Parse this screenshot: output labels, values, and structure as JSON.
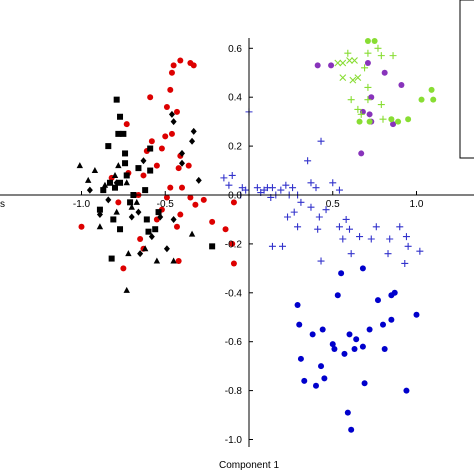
{
  "chart_data": {
    "type": "scatter",
    "xlabel": "Component 1",
    "ylabel": "",
    "xlim": [
      -1.43,
      1.38
    ],
    "ylim": [
      -1.04,
      0.72
    ],
    "x_ticks": [
      {
        "value": -1.0,
        "label": "-1.0"
      },
      {
        "value": -0.5,
        "label": "-0.5"
      },
      {
        "value": 0.5,
        "label": "0.5"
      },
      {
        "value": 1.0,
        "label": "1.0"
      }
    ],
    "y_ticks": [
      {
        "value": 0.6,
        "label": "0.6"
      },
      {
        "value": 0.4,
        "label": "0.4"
      },
      {
        "value": 0.2,
        "label": "0.2"
      },
      {
        "value": 0.0,
        "label": "0.0"
      },
      {
        "value": -0.2,
        "label": "-0.2"
      },
      {
        "value": -0.4,
        "label": "-0.4"
      },
      {
        "value": -0.6,
        "label": "-0.6"
      },
      {
        "value": -0.8,
        "label": "-0.8"
      },
      {
        "value": -1.0,
        "label": "-1.0"
      }
    ],
    "left_edge_label": "s",
    "legend": {
      "placement": "top-right",
      "entries": []
    },
    "grid": false,
    "series": [
      {
        "marker": "circle",
        "color": "#dd0000",
        "points": [
          [
            -0.45,
            0.53
          ],
          [
            -0.41,
            0.55
          ],
          [
            -0.46,
            0.5
          ],
          [
            -0.47,
            0.43
          ],
          [
            -0.35,
            0.54
          ],
          [
            -0.33,
            0.53
          ],
          [
            -0.49,
            0.36
          ],
          [
            -0.43,
            0.34
          ],
          [
            -0.59,
            0.4
          ],
          [
            -0.73,
            0.29
          ],
          [
            -0.46,
            0.25
          ],
          [
            -0.58,
            0.22
          ],
          [
            -0.61,
            0.18
          ],
          [
            -0.5,
            0.24
          ],
          [
            -0.52,
            0.19
          ],
          [
            -0.41,
            0.16
          ],
          [
            -0.72,
            0.09
          ],
          [
            -0.55,
            0.12
          ],
          [
            -0.42,
            0.11
          ],
          [
            -0.36,
            0.12
          ],
          [
            -0.82,
            0.07
          ],
          [
            -0.63,
            0.08
          ],
          [
            -0.47,
            0.03
          ],
          [
            -0.4,
            0.03
          ],
          [
            -0.66,
            0.0
          ],
          [
            -0.49,
            -0.01
          ],
          [
            -0.35,
            -0.01
          ],
          [
            -0.78,
            -0.03
          ],
          [
            -0.27,
            -0.02
          ],
          [
            -0.32,
            -0.04
          ],
          [
            -0.52,
            -0.06
          ],
          [
            -0.41,
            -0.08
          ],
          [
            -0.55,
            -0.1
          ],
          [
            -0.43,
            -0.13
          ],
          [
            -0.65,
            -0.18
          ],
          [
            -0.63,
            -0.22
          ],
          [
            -0.42,
            -0.27
          ],
          [
            -0.75,
            -0.3
          ],
          [
            -1.0,
            -0.13
          ],
          [
            -0.09,
            -0.03
          ],
          [
            -0.22,
            -0.11
          ],
          [
            -0.14,
            -0.14
          ],
          [
            -0.1,
            -0.2
          ],
          [
            -0.09,
            -0.28
          ]
        ]
      },
      {
        "marker": "square",
        "color": "#000000",
        "points": [
          [
            -0.79,
            0.39
          ],
          [
            -0.77,
            0.32
          ],
          [
            -0.78,
            0.25
          ],
          [
            -0.75,
            0.25
          ],
          [
            -0.59,
            0.19
          ],
          [
            -0.84,
            0.2
          ],
          [
            -0.74,
            0.17
          ],
          [
            -0.74,
            0.13
          ],
          [
            -0.77,
            0.05
          ],
          [
            -0.66,
            0.11
          ],
          [
            -0.73,
            0.08
          ],
          [
            -0.59,
            0.1
          ],
          [
            -0.87,
            0.02
          ],
          [
            -0.62,
            0.02
          ],
          [
            -0.83,
            0.05
          ],
          [
            -0.8,
            0.03
          ],
          [
            -0.71,
            -0.03
          ],
          [
            -0.89,
            -0.06
          ],
          [
            -0.69,
            0.0
          ],
          [
            -0.61,
            -0.1
          ],
          [
            -0.54,
            -0.07
          ],
          [
            -0.22,
            -0.21
          ],
          [
            -0.82,
            -0.26
          ],
          [
            -0.77,
            -0.14
          ],
          [
            -0.56,
            -0.14
          ],
          [
            -0.81,
            -0.1
          ],
          [
            -0.6,
            -0.15
          ]
        ]
      },
      {
        "marker": "triangle",
        "color": "#000000",
        "points": [
          [
            -1.01,
            0.12
          ],
          [
            -0.78,
            0.12
          ],
          [
            -0.92,
            0.1
          ],
          [
            -0.8,
            0.08
          ],
          [
            -0.96,
            0.06
          ],
          [
            -0.86,
            0.04
          ],
          [
            -0.73,
            0.05
          ],
          [
            -0.7,
            -0.05
          ],
          [
            -0.79,
            -0.07
          ],
          [
            -0.89,
            -0.13
          ],
          [
            -0.62,
            -0.22
          ],
          [
            -0.72,
            -0.24
          ],
          [
            -0.55,
            -0.27
          ],
          [
            -0.34,
            -0.16
          ],
          [
            -0.45,
            -0.27
          ],
          [
            -0.73,
            -0.39
          ],
          [
            -0.67,
            -0.03
          ]
        ]
      },
      {
        "marker": "diamond",
        "color": "#000000",
        "points": [
          [
            -0.46,
            0.33
          ],
          [
            -0.45,
            0.3
          ],
          [
            -0.33,
            0.26
          ],
          [
            -0.63,
            0.14
          ],
          [
            -0.4,
            0.13
          ],
          [
            -0.34,
            0.22
          ],
          [
            -0.3,
            0.06
          ],
          [
            -0.79,
            0.05
          ],
          [
            -0.95,
            0.02
          ],
          [
            -0.84,
            -0.02
          ],
          [
            -0.89,
            -0.08
          ],
          [
            -0.7,
            -0.09
          ],
          [
            -0.53,
            -0.09
          ],
          [
            -0.66,
            -0.07
          ],
          [
            -0.45,
            -0.1
          ],
          [
            -0.58,
            -0.17
          ],
          [
            -0.49,
            -0.22
          ],
          [
            -0.65,
            -0.24
          ],
          [
            -0.4,
            0.17
          ]
        ]
      },
      {
        "marker": "plus",
        "color": "#3333cc",
        "points": [
          [
            -0.15,
            0.07
          ],
          [
            -0.1,
            0.08
          ],
          [
            -0.12,
            0.04
          ],
          [
            -0.04,
            0.03
          ],
          [
            -0.05,
            0.0
          ],
          [
            -0.02,
            0.02
          ],
          [
            0.05,
            0.03
          ],
          [
            0.07,
            0.01
          ],
          [
            0.09,
            0.02
          ],
          [
            0.11,
            0.03
          ],
          [
            0.13,
            -0.01
          ],
          [
            0.14,
            0.03
          ],
          [
            0.16,
            0.0
          ],
          [
            0.19,
            0.02
          ],
          [
            0.22,
            0.04
          ],
          [
            0.24,
            0.0
          ],
          [
            0.26,
            0.03
          ],
          [
            0.29,
            0.0
          ],
          [
            0.31,
            -0.03
          ],
          [
            0.35,
            0.14
          ],
          [
            0.37,
            0.05
          ],
          [
            0.4,
            0.03
          ],
          [
            0.43,
            0.22
          ],
          [
            0.5,
            0.05
          ],
          [
            0.54,
            0.02
          ],
          [
            0.37,
            -0.05
          ],
          [
            0.42,
            -0.09
          ],
          [
            0.46,
            -0.06
          ],
          [
            0.27,
            -0.07
          ],
          [
            0.23,
            -0.09
          ],
          [
            0.29,
            -0.13
          ],
          [
            0.41,
            -0.14
          ],
          [
            0.54,
            -0.13
          ],
          [
            0.56,
            -0.18
          ],
          [
            0.58,
            -0.1
          ],
          [
            0.6,
            -0.14
          ],
          [
            0.66,
            -0.17
          ],
          [
            0.73,
            -0.18
          ],
          [
            0.84,
            -0.18
          ],
          [
            0.76,
            -0.13
          ],
          [
            0.9,
            -0.13
          ],
          [
            0.95,
            -0.21
          ],
          [
            0.94,
            -0.17
          ],
          [
            0.83,
            -0.24
          ],
          [
            0.93,
            -0.28
          ],
          [
            1.02,
            -0.23
          ],
          [
            0.61,
            -0.24
          ],
          [
            0.43,
            -0.27
          ],
          [
            0.14,
            -0.21
          ],
          [
            0.2,
            -0.21
          ],
          [
            0.0,
            0.34
          ]
        ]
      },
      {
        "marker": "circle",
        "color": "#0000cc",
        "points": [
          [
            0.55,
            -0.32
          ],
          [
            0.68,
            -0.3
          ],
          [
            0.53,
            -0.41
          ],
          [
            0.85,
            -0.41
          ],
          [
            0.87,
            -0.4
          ],
          [
            0.77,
            -0.43
          ],
          [
            0.85,
            -0.51
          ],
          [
            1.0,
            -0.49
          ],
          [
            0.72,
            -0.55
          ],
          [
            0.8,
            -0.53
          ],
          [
            0.44,
            -0.55
          ],
          [
            0.6,
            -0.57
          ],
          [
            0.64,
            -0.59
          ],
          [
            0.51,
            -0.63
          ],
          [
            0.63,
            -0.63
          ],
          [
            0.68,
            -0.62
          ],
          [
            0.81,
            -0.63
          ],
          [
            0.57,
            -0.65
          ],
          [
            0.29,
            -0.45
          ],
          [
            0.3,
            -0.53
          ],
          [
            0.38,
            -0.57
          ],
          [
            0.5,
            -0.61
          ],
          [
            0.31,
            -0.67
          ],
          [
            0.43,
            -0.7
          ],
          [
            0.33,
            -0.76
          ],
          [
            0.4,
            -0.78
          ],
          [
            0.45,
            -0.75
          ],
          [
            0.94,
            -0.8
          ],
          [
            0.59,
            -0.89
          ],
          [
            0.61,
            -0.96
          ],
          [
            0.69,
            -0.77
          ]
        ]
      },
      {
        "marker": "circle",
        "color": "#8833bb",
        "points": [
          [
            0.41,
            0.53
          ],
          [
            0.49,
            0.53
          ],
          [
            0.71,
            0.54
          ],
          [
            0.81,
            0.5
          ],
          [
            0.91,
            0.45
          ],
          [
            0.68,
            0.34
          ],
          [
            0.73,
            0.3
          ],
          [
            0.86,
            0.29
          ],
          [
            0.73,
            0.4
          ],
          [
            0.72,
            0.33
          ],
          [
            0.67,
            0.17
          ]
        ]
      },
      {
        "marker": "circle",
        "color": "#88dd33",
        "points": [
          [
            0.71,
            0.63
          ],
          [
            0.75,
            0.63
          ],
          [
            1.09,
            0.43
          ],
          [
            1.1,
            0.39
          ],
          [
            1.03,
            0.39
          ],
          [
            0.89,
            0.3
          ],
          [
            0.95,
            0.31
          ],
          [
            0.66,
            0.3
          ],
          [
            0.72,
            0.3
          ],
          [
            0.85,
            0.31
          ]
        ]
      },
      {
        "marker": "x",
        "color": "#88dd33",
        "points": [
          [
            0.53,
            0.54
          ],
          [
            0.56,
            0.54
          ],
          [
            0.6,
            0.55
          ],
          [
            0.63,
            0.55
          ],
          [
            0.56,
            0.48
          ],
          [
            0.62,
            0.47
          ],
          [
            0.65,
            0.48
          ]
        ]
      },
      {
        "marker": "plus",
        "color": "#88dd33",
        "points": [
          [
            0.59,
            0.58
          ],
          [
            0.71,
            0.58
          ],
          [
            0.79,
            0.57
          ],
          [
            0.69,
            0.52
          ],
          [
            0.86,
            0.57
          ],
          [
            0.77,
            0.6
          ],
          [
            0.71,
            0.44
          ],
          [
            0.79,
            0.37
          ],
          [
            0.8,
            0.31
          ],
          [
            0.65,
            0.35
          ],
          [
            0.67,
            0.33
          ],
          [
            0.71,
            0.39
          ],
          [
            0.61,
            0.39
          ]
        ]
      }
    ]
  }
}
